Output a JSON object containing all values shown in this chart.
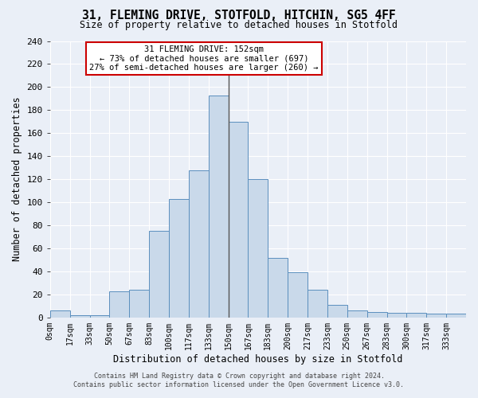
{
  "title1": "31, FLEMING DRIVE, STOTFOLD, HITCHIN, SG5 4FF",
  "title2": "Size of property relative to detached houses in Stotfold",
  "xlabel": "Distribution of detached houses by size in Stotfold",
  "ylabel": "Number of detached properties",
  "annotation_title": "31 FLEMING DRIVE: 152sqm",
  "annotation_line1": "← 73% of detached houses are smaller (697)",
  "annotation_line2": "27% of semi-detached houses are larger (260) →",
  "bin_labels": [
    "0sqm",
    "17sqm",
    "33sqm",
    "50sqm",
    "67sqm",
    "83sqm",
    "100sqm",
    "117sqm",
    "133sqm",
    "150sqm",
    "167sqm",
    "183sqm",
    "200sqm",
    "217sqm",
    "233sqm",
    "250sqm",
    "267sqm",
    "283sqm",
    "300sqm",
    "317sqm",
    "333sqm"
  ],
  "values": [
    6,
    2,
    2,
    23,
    24,
    75,
    103,
    128,
    193,
    170,
    120,
    52,
    39,
    24,
    11,
    6,
    5,
    4,
    4,
    3,
    3
  ],
  "bar_facecolor": "#c9d9ea",
  "bar_edgecolor": "#5b8fbe",
  "vline_color": "#555555",
  "vline_bin_index": 10,
  "annotation_box_facecolor": "#ffffff",
  "annotation_box_edgecolor": "#cc0000",
  "background_color": "#eaeff7",
  "grid_color": "#ffffff",
  "footer_line1": "Contains HM Land Registry data © Crown copyright and database right 2024.",
  "footer_line2": "Contains public sector information licensed under the Open Government Licence v3.0.",
  "ylim": [
    0,
    240
  ],
  "yticks": [
    0,
    20,
    40,
    60,
    80,
    100,
    120,
    140,
    160,
    180,
    200,
    220,
    240
  ]
}
